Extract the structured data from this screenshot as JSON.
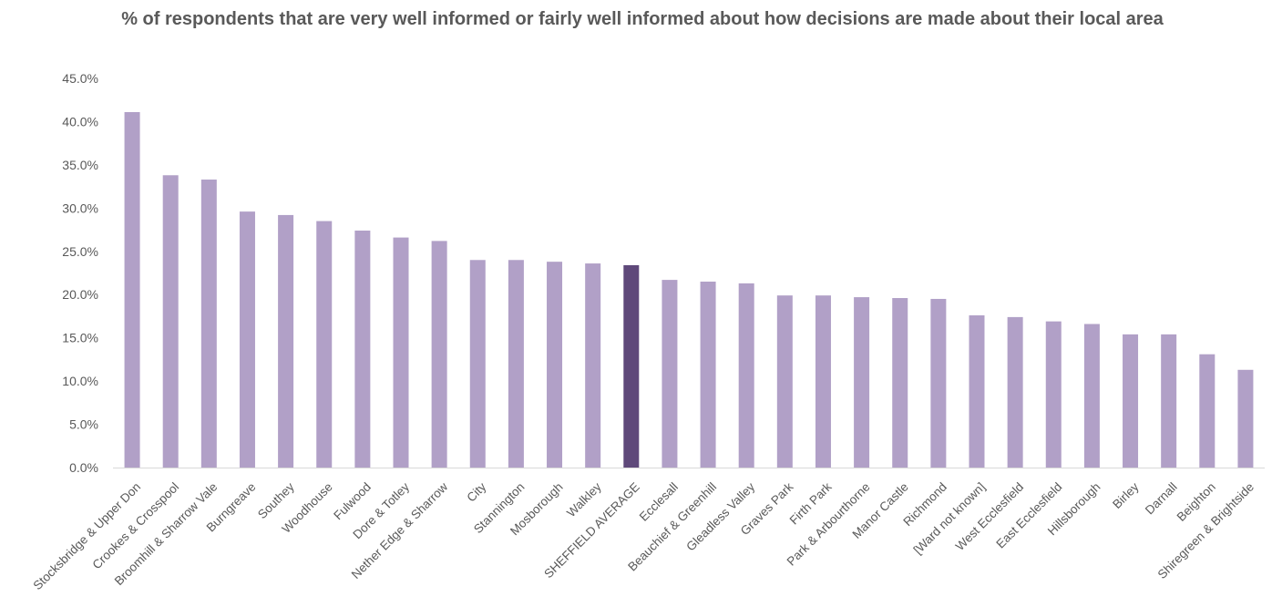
{
  "chart_data": {
    "type": "bar",
    "title": "% of respondents that are very well informed or fairly well informed about how decisions are made about their local area",
    "xlabel": "",
    "ylabel": "",
    "ylim": [
      0,
      45
    ],
    "yticks": [
      "0.0%",
      "5.0%",
      "10.0%",
      "15.0%",
      "20.0%",
      "25.0%",
      "30.0%",
      "35.0%",
      "40.0%",
      "45.0%"
    ],
    "grid": false,
    "legend": "none",
    "categories": [
      "Stocksbridge & Upper Don",
      "Crookes & Crosspool",
      "Broomhill & Sharrow Vale",
      "Burngreave",
      "Southey",
      "Woodhouse",
      "Fulwood",
      "Dore & Totley",
      "Nether Edge & Sharrow",
      "City",
      "Stannington",
      "Mosborough",
      "Walkley",
      "SHEFFIELD AVERAGE",
      "Ecclesall",
      "Beauchief & Greenhill",
      "Gleadless Valley",
      "Graves Park",
      "Firth Park",
      "Park & Arbourthorne",
      "Manor Castle",
      "Richmond",
      "[Ward not known]",
      "West Ecclesfield",
      "East Ecclesfield",
      "Hillsborough",
      "Birley",
      "Darnall",
      "Beighton",
      "Shiregreen & Brightside"
    ],
    "values": [
      41.1,
      33.8,
      33.3,
      29.6,
      29.2,
      28.5,
      27.4,
      26.6,
      26.2,
      24.0,
      24.0,
      23.8,
      23.6,
      23.4,
      21.7,
      21.5,
      21.3,
      19.9,
      19.9,
      19.7,
      19.6,
      19.5,
      17.6,
      17.4,
      16.9,
      16.6,
      15.4,
      15.4,
      13.1,
      11.3
    ],
    "highlight_category": "SHEFFIELD AVERAGE",
    "colors": {
      "bar": "#b1a0c7",
      "highlight": "#5f497a",
      "axis": "#d9d9d9",
      "text": "#595959"
    }
  }
}
